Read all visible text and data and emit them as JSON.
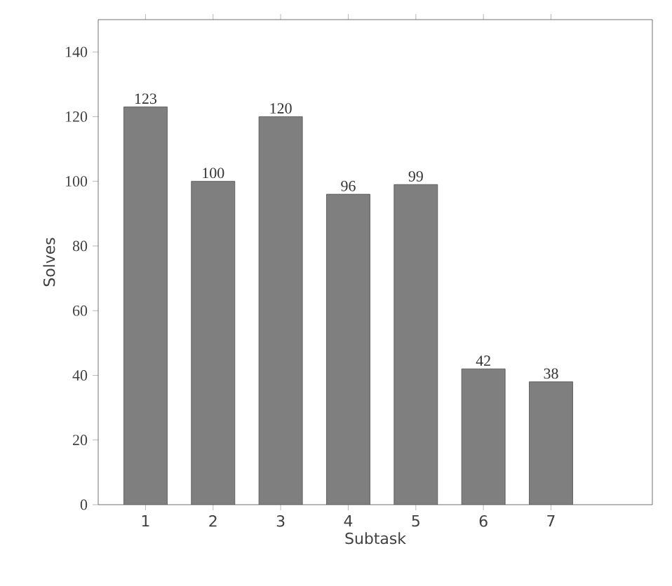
{
  "chart_data": {
    "type": "bar",
    "xlabel": "Subtask",
    "ylabel": "Solves",
    "categories": [
      "1",
      "2",
      "3",
      "4",
      "5",
      "6",
      "7"
    ],
    "values": [
      123,
      100,
      120,
      96,
      99,
      42,
      38
    ],
    "color": "#7f7f7f",
    "data_labels": true,
    "ylim": [
      0,
      150
    ],
    "yticks": [
      0,
      20,
      40,
      60,
      80,
      100,
      120,
      140
    ]
  }
}
